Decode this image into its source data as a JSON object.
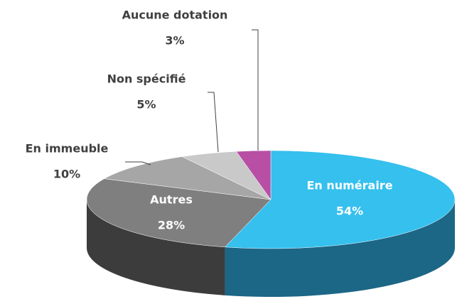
{
  "chart_data": {
    "type": "pie",
    "categories": [
      "En numéraire",
      "Autres",
      "En immeuble",
      "Non spécifié",
      "Aucune dotation"
    ],
    "values": [
      54,
      28,
      10,
      5,
      3
    ],
    "value_labels": [
      "54%",
      "28%",
      "10%",
      "5%",
      "3%"
    ],
    "colors": [
      "#35c0ee",
      "#7f7f7f",
      "#a6a6a6",
      "#c9c9c9",
      "#b84fa5"
    ],
    "side_colors": [
      "#1c6686",
      "#3c3c3c",
      "#5e5e5e",
      "#7a7a7a",
      "#6a2c5e"
    ]
  }
}
